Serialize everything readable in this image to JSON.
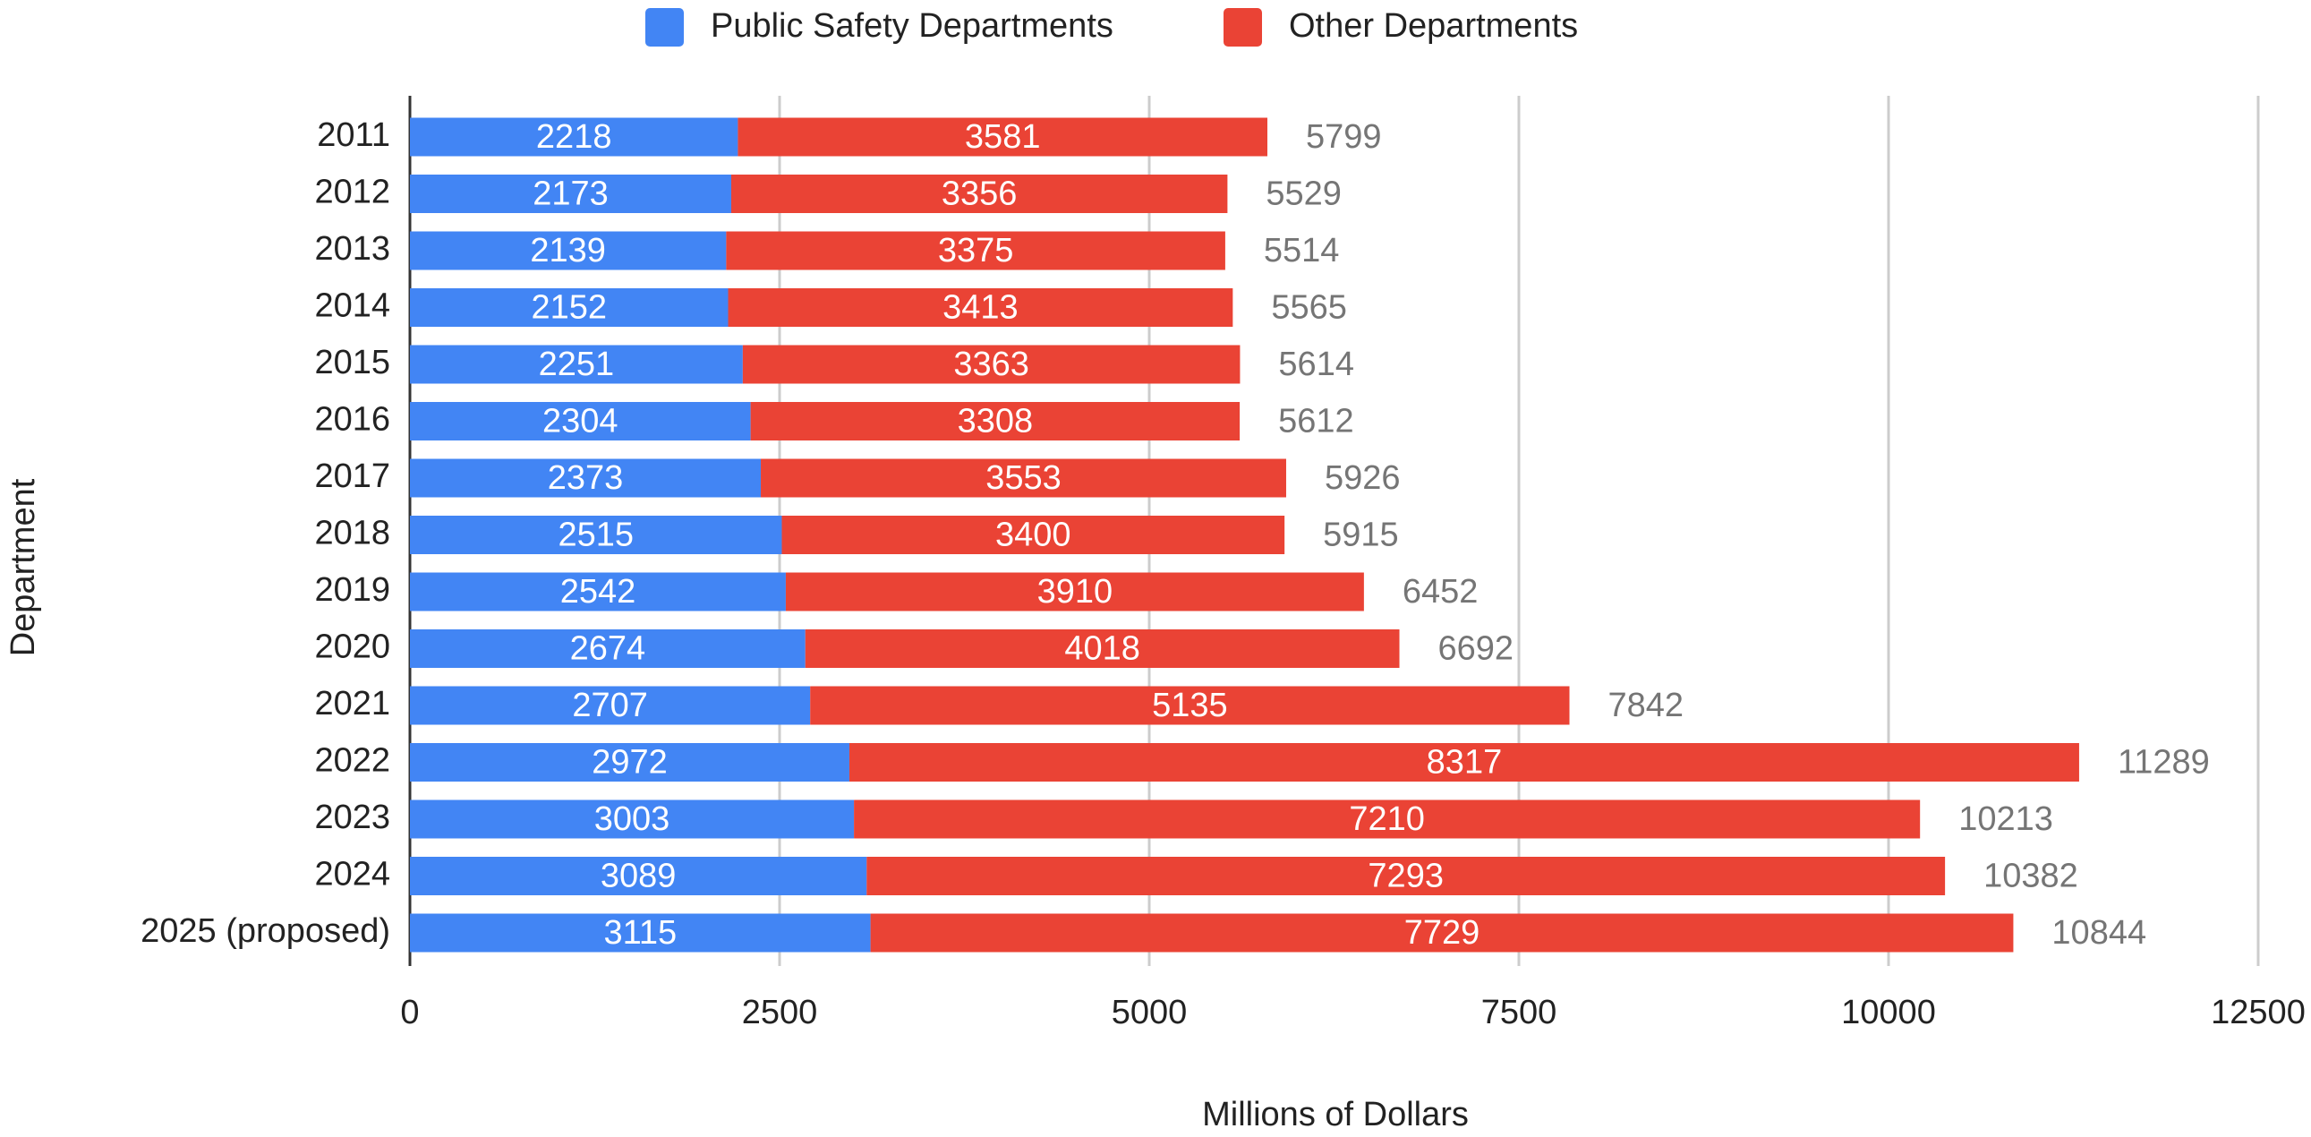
{
  "chart_data": {
    "type": "stacked_bar_horizontal",
    "x_label": "Millions of Dollars",
    "y_label": "Department",
    "categories": [
      "2011",
      "2012",
      "2013",
      "2014",
      "2015",
      "2016",
      "2017",
      "2018",
      "2019",
      "2020",
      "2021",
      "2022",
      "2023",
      "2024",
      "2025 (proposed)"
    ],
    "series": [
      {
        "name": "Public Safety Departments",
        "color": "#4285f4",
        "values": [
          2218,
          2173,
          2139,
          2152,
          2251,
          2304,
          2373,
          2515,
          2542,
          2674,
          2707,
          2972,
          3003,
          3089,
          3115
        ]
      },
      {
        "name": "Other Departments",
        "color": "#ea4335",
        "values": [
          3581,
          3356,
          3375,
          3413,
          3363,
          3308,
          3553,
          3400,
          3910,
          4018,
          5135,
          8317,
          7210,
          7293,
          7729
        ]
      }
    ],
    "totals": [
      5799,
      5529,
      5514,
      5565,
      5614,
      5612,
      5926,
      5915,
      6452,
      6692,
      7842,
      11289,
      10213,
      10382,
      10844
    ],
    "xlim": [
      0,
      12500
    ],
    "xticks": [
      0,
      2500,
      5000,
      7500,
      10000,
      12500
    ],
    "grid": true,
    "legend": "top"
  }
}
